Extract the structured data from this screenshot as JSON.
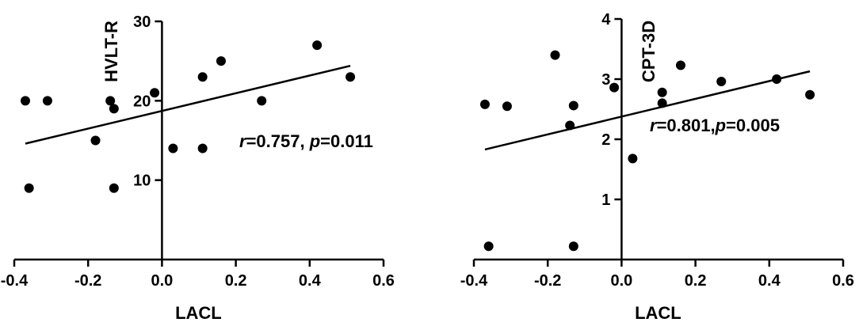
{
  "chart_data": [
    {
      "type": "scatter",
      "xlabel": "LACL",
      "ylabel": "HVLT-R",
      "xlim": [
        -0.4,
        0.6
      ],
      "ylim": [
        0,
        30
      ],
      "xticks": [
        -0.4,
        -0.2,
        0.0,
        0.2,
        0.4,
        0.6
      ],
      "xtick_labels": [
        "-0.4",
        "-0.2",
        "0.0",
        "0.2",
        "0.4",
        "0.6"
      ],
      "yticks": [
        10,
        20,
        30
      ],
      "ytick_labels": [
        "10",
        "20",
        "30"
      ],
      "grid": false,
      "points": [
        {
          "x": -0.37,
          "y": 20
        },
        {
          "x": -0.36,
          "y": 9
        },
        {
          "x": -0.31,
          "y": 20
        },
        {
          "x": -0.18,
          "y": 15
        },
        {
          "x": -0.14,
          "y": 20
        },
        {
          "x": -0.13,
          "y": 19
        },
        {
          "x": -0.13,
          "y": 9
        },
        {
          "x": -0.02,
          "y": 21
        },
        {
          "x": 0.03,
          "y": 14
        },
        {
          "x": 0.11,
          "y": 23
        },
        {
          "x": 0.11,
          "y": 14
        },
        {
          "x": 0.16,
          "y": 25
        },
        {
          "x": 0.27,
          "y": 20
        },
        {
          "x": 0.42,
          "y": 27
        },
        {
          "x": 0.51,
          "y": 23
        }
      ],
      "fit_line": {
        "x": [
          -0.37,
          0.51
        ],
        "y": [
          14.6,
          24.4
        ]
      },
      "annotation": {
        "r_symbol": "r",
        "r_text": "=0.757, ",
        "p_symbol": "p",
        "p_text": "=0.011"
      }
    },
    {
      "type": "scatter",
      "xlabel": "LACL",
      "ylabel": "CPT-3D",
      "xlim": [
        -0.4,
        0.6
      ],
      "ylim": [
        0,
        4
      ],
      "xticks": [
        -0.4,
        -0.2,
        0.0,
        0.2,
        0.4,
        0.6
      ],
      "xtick_labels": [
        "-0.4",
        "-0.2",
        "0.0",
        "0.2",
        "0.4",
        "0.6"
      ],
      "yticks": [
        1,
        2,
        3,
        4
      ],
      "ytick_labels": [
        "1",
        "2",
        "3",
        "4"
      ],
      "grid": false,
      "points": [
        {
          "x": -0.37,
          "y": 2.58
        },
        {
          "x": -0.36,
          "y": 0.22
        },
        {
          "x": -0.31,
          "y": 2.55
        },
        {
          "x": -0.18,
          "y": 3.4
        },
        {
          "x": -0.14,
          "y": 2.23
        },
        {
          "x": -0.13,
          "y": 2.56
        },
        {
          "x": -0.13,
          "y": 0.22
        },
        {
          "x": -0.02,
          "y": 2.86
        },
        {
          "x": 0.03,
          "y": 1.68
        },
        {
          "x": 0.11,
          "y": 2.78
        },
        {
          "x": 0.11,
          "y": 2.6
        },
        {
          "x": 0.16,
          "y": 3.23
        },
        {
          "x": 0.27,
          "y": 2.96
        },
        {
          "x": 0.42,
          "y": 3.0
        },
        {
          "x": 0.51,
          "y": 2.74
        }
      ],
      "fit_line": {
        "x": [
          -0.37,
          0.51
        ],
        "y": [
          1.83,
          3.13
        ]
      },
      "annotation": {
        "r_symbol": "r",
        "r_text": "=0.801,",
        "p_symbol": "p",
        "p_text": "=0.005"
      }
    }
  ]
}
